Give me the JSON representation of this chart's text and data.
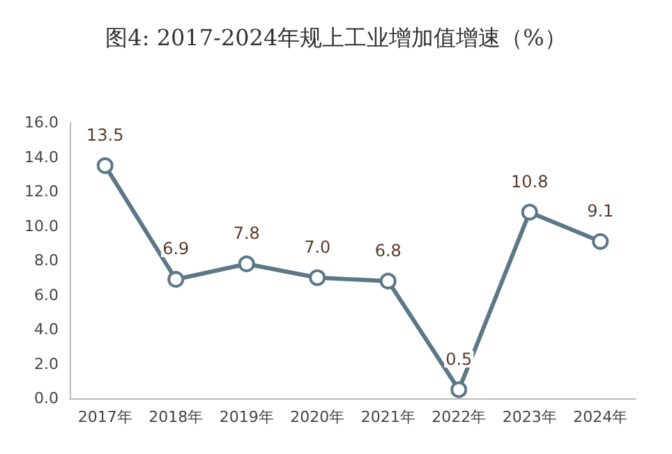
{
  "chart_data": {
    "type": "line",
    "title": "图4: 2017-2024年规上工业增加值增速（%）",
    "categories": [
      "2017年",
      "2018年",
      "2019年",
      "2020年",
      "2021年",
      "2022年",
      "2023年",
      "2024年"
    ],
    "series": [
      {
        "color": "#5b7886",
        "values": [
          13.5,
          6.9,
          7.8,
          7.0,
          6.8,
          0.5,
          10.8,
          9.1
        ],
        "value_labels": [
          "13.5",
          "6.9",
          "7.8",
          "7.0",
          "6.8",
          "0.5",
          "10.8",
          "9.1"
        ]
      }
    ],
    "ylim": [
      0,
      16
    ],
    "yticks": [
      {
        "value": 0,
        "label": "0.0"
      },
      {
        "value": 2,
        "label": "2.0"
      },
      {
        "value": 4,
        "label": "4.0"
      },
      {
        "value": 6,
        "label": "6.0"
      },
      {
        "value": 8,
        "label": "8.0"
      },
      {
        "value": 10,
        "label": "10.0"
      },
      {
        "value": 12,
        "label": "12.0"
      },
      {
        "value": 14,
        "label": "14.0"
      },
      {
        "value": 16,
        "label": "16.0"
      }
    ],
    "grid": false,
    "marker": "circle",
    "line_style": "solid"
  }
}
